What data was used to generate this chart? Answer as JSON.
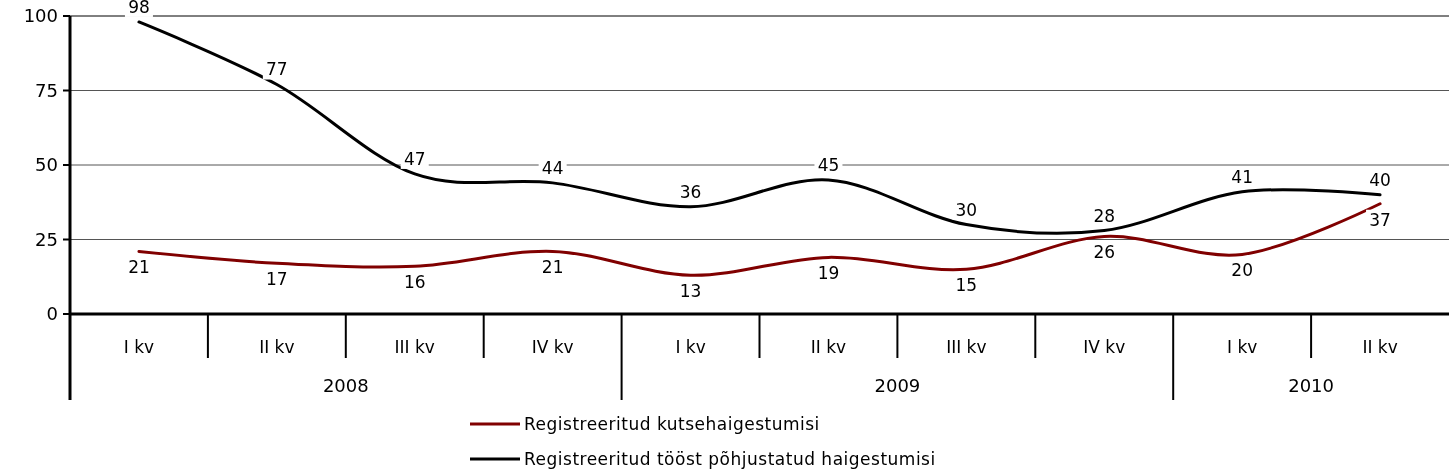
{
  "chart_data": {
    "type": "line",
    "categories": [
      "I kv",
      "II kv",
      "III kv",
      "IV kv",
      "I kv",
      "II kv",
      "III kv",
      "IV kv",
      "I kv",
      "II kv"
    ],
    "annotations": [
      "2008",
      "2009",
      "2010"
    ],
    "series": [
      {
        "name": "Registreeritud kutsehaigestumisi",
        "color": "#800000",
        "values": [
          21,
          17,
          16,
          21,
          13,
          19,
          15,
          26,
          20,
          37
        ]
      },
      {
        "name": "Registreeritud tööst põhjustatud haigestumisi",
        "color": "#000000",
        "values": [
          98,
          77,
          47,
          44,
          36,
          45,
          30,
          28,
          41,
          40
        ]
      }
    ],
    "ylim": [
      0,
      100
    ],
    "yticks": [
      0,
      25,
      50,
      75,
      100
    ],
    "grid": "y",
    "legend": "bottom",
    "data_labels": true,
    "marker": "none",
    "line_style": "solid"
  }
}
